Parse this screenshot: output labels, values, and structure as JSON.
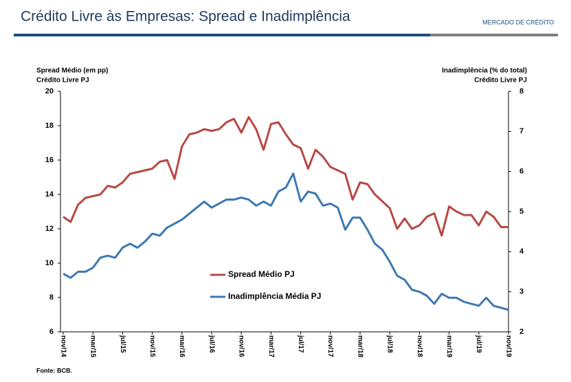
{
  "header": {
    "section": "MERCADO DE CRÉDITO"
  },
  "footer": {
    "source": "Fonte: BCB."
  },
  "chart_data": {
    "type": "line",
    "title": "Crédito Livre às Empresas: Spread e Inadimplência",
    "ylabel": [
      "Spread Médio (em pp)",
      "Crédito Livre PJ"
    ],
    "y2label": [
      "Inadimplência (% do total)",
      "Crédito Livre PJ"
    ],
    "categories": [
      "nov/14",
      null,
      null,
      null,
      "mar/15",
      null,
      null,
      null,
      "jul/15",
      null,
      null,
      null,
      "nov/15",
      null,
      null,
      null,
      "mar/16",
      null,
      null,
      null,
      "jul/16",
      null,
      null,
      null,
      "nov/16",
      null,
      null,
      null,
      "mar/17",
      null,
      null,
      null,
      "jul/17",
      null,
      null,
      null,
      "nov/17",
      null,
      null,
      null,
      "mar/18",
      null,
      null,
      null,
      "jul/18",
      null,
      null,
      null,
      "nov/18",
      null,
      null,
      null,
      "mar/19",
      null,
      null,
      null,
      "jul/19",
      null,
      null,
      null,
      "nov/19"
    ],
    "ylim": [
      6,
      20
    ],
    "yticks": [
      6,
      8,
      10,
      12,
      14,
      16,
      18,
      20
    ],
    "y2lim": [
      2,
      8
    ],
    "y2ticks": [
      2,
      3,
      4,
      5,
      6,
      7,
      8
    ],
    "legend": "center",
    "series": [
      {
        "name": "Spread Médio PJ",
        "color": "#b84843",
        "values": [
          12.7,
          12.4,
          13.4,
          13.8,
          13.9,
          14.0,
          14.5,
          14.4,
          14.7,
          15.2,
          15.3,
          15.4,
          15.5,
          15.9,
          16.0,
          14.9,
          16.8,
          17.5,
          17.6,
          17.8,
          17.7,
          17.8,
          18.2,
          18.4,
          17.6,
          18.5,
          17.8,
          16.6,
          18.1,
          18.2,
          17.5,
          16.9,
          16.7,
          15.5,
          16.6,
          16.2,
          15.6,
          15.4,
          15.2,
          13.7,
          14.7,
          14.6,
          14.0,
          13.6,
          13.2,
          12.0,
          12.6,
          12.0,
          12.2,
          12.7,
          12.9,
          11.6,
          13.3,
          13.0,
          12.8,
          12.8,
          12.2,
          13.0,
          12.7,
          12.1,
          12.1
        ]
      },
      {
        "name": "Inadimplência Média PJ",
        "color": "#3d78b1",
        "axis": "y2",
        "values": [
          3.45,
          3.35,
          3.5,
          3.5,
          3.6,
          3.85,
          3.9,
          3.85,
          4.1,
          4.2,
          4.1,
          4.25,
          4.45,
          4.4,
          4.6,
          4.7,
          4.8,
          4.95,
          5.1,
          5.25,
          5.1,
          5.2,
          5.3,
          5.3,
          5.35,
          5.3,
          5.15,
          5.25,
          5.15,
          5.5,
          5.6,
          5.95,
          5.25,
          5.5,
          5.45,
          5.15,
          5.2,
          5.1,
          4.55,
          4.85,
          4.85,
          4.55,
          4.2,
          4.05,
          3.75,
          3.4,
          3.3,
          3.05,
          3.0,
          2.9,
          2.7,
          2.95,
          2.85,
          2.85,
          2.75,
          2.7,
          2.65,
          2.85,
          2.65,
          2.6,
          2.55
        ]
      }
    ]
  }
}
